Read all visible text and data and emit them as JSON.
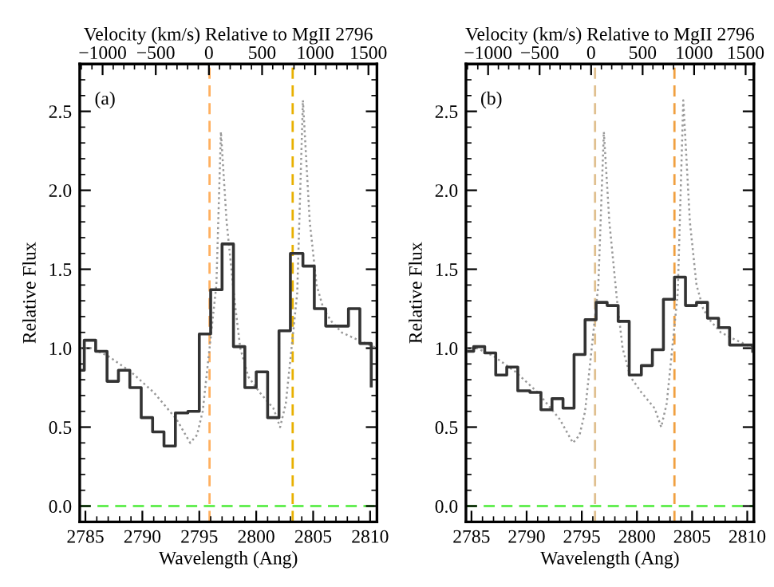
{
  "chart_data": [
    {
      "type": "step",
      "xlabel": "Wavelength (Ang)",
      "ylabel": "Relative Flux",
      "x2label": "Velocity (km/s) Relative to MgII 2796",
      "annotations": [
        "(a)"
      ],
      "xlim": [
        2784.5,
        2810.6
      ],
      "xticks": [
        2785,
        2790,
        2795,
        2800,
        2805,
        2810
      ],
      "ylim": [
        -0.1,
        2.8
      ],
      "yticks": [
        {
          "value": 0,
          "label": "0.0"
        },
        {
          "value": 0.5,
          "label": "0.5"
        },
        {
          "value": 1,
          "label": "1.0"
        },
        {
          "value": 1.5,
          "label": "1.5"
        },
        {
          "value": 2,
          "label": "2.0"
        },
        {
          "value": 2.5,
          "label": "2.5"
        }
      ],
      "x2lim": [
        -1215,
        1580
      ],
      "x2ticks": [
        -1000,
        -500,
        0,
        500,
        1000,
        1500
      ],
      "grid": false,
      "legend": false,
      "ref_lines": [
        {
          "axis": "x",
          "value": 2795.9,
          "color": "#ffb060",
          "line_style": "dashed"
        },
        {
          "axis": "x",
          "value": 2803.2,
          "color": "#e8b000",
          "line_style": "dashed"
        },
        {
          "axis": "y",
          "value": 0,
          "color": "#66ee55",
          "line_style": "dashed"
        }
      ],
      "series": [
        {
          "type": "line",
          "color": "#999999",
          "line_style": "dotted",
          "x": [
            2784.5,
            2785.5,
            2787,
            2789,
            2791,
            2793,
            2793.8,
            2794.2,
            2794.8,
            2795.3,
            2795.9,
            2796.5,
            2796.9,
            2797.4,
            2798.1,
            2798.6,
            2799.3,
            2800.3,
            2801.5,
            2802.1,
            2802.6,
            2803.1,
            2803.6,
            2804.1,
            2804.7,
            2805.3,
            2805.9,
            2806.6,
            2807.5,
            2809,
            2810.6
          ],
          "values": [
            1.0,
            1.0,
            0.95,
            0.85,
            0.72,
            0.55,
            0.45,
            0.4,
            0.45,
            0.6,
            1.0,
            1.4,
            2.37,
            1.8,
            1.3,
            1.0,
            0.82,
            0.72,
            0.62,
            0.5,
            0.65,
            1.0,
            1.35,
            2.57,
            1.8,
            1.4,
            1.25,
            1.17,
            1.1,
            1.05,
            1.0
          ]
        },
        {
          "type": "step",
          "color": "#333333",
          "x": [
            2784.5,
            2784.9,
            2785.9,
            2786.9,
            2787.9,
            2788.9,
            2789.9,
            2790.9,
            2791.9,
            2792.9,
            2794.0,
            2795.0,
            2796.0,
            2797.0,
            2798.0,
            2799.0,
            2800.0,
            2801.0,
            2802.0,
            2803.0,
            2804.1,
            2805.1,
            2806.1,
            2807.1,
            2808.1,
            2809.1,
            2810.1
          ],
          "values": [
            0.86,
            1.05,
            0.98,
            0.79,
            0.86,
            0.75,
            0.56,
            0.47,
            0.38,
            0.59,
            0.6,
            1.09,
            1.37,
            1.66,
            1.01,
            0.75,
            0.85,
            0.56,
            1.11,
            1.6,
            1.52,
            1.25,
            1.14,
            1.14,
            1.25,
            1.03,
            0.76
          ]
        }
      ]
    },
    {
      "type": "step",
      "xlabel": "Wavelength (Ang)",
      "ylabel": "Relative Flux",
      "x2label": "Velocity (km/s) Relative to MgII 2796",
      "annotations": [
        "(b)"
      ],
      "xlim": [
        2784.5,
        2810.6
      ],
      "xticks": [
        2785,
        2790,
        2795,
        2800,
        2805,
        2810
      ],
      "ylim": [
        -0.1,
        2.8
      ],
      "yticks": [
        {
          "value": 0,
          "label": "0.0"
        },
        {
          "value": 0.5,
          "label": "0.5"
        },
        {
          "value": 1,
          "label": "1.0"
        },
        {
          "value": 1.5,
          "label": "1.5"
        },
        {
          "value": 2,
          "label": "2.0"
        },
        {
          "value": 2.5,
          "label": "2.5"
        }
      ],
      "x2lim": [
        -1215,
        1580
      ],
      "x2ticks": [
        -1000,
        -500,
        0,
        500,
        1000,
        1500
      ],
      "grid": false,
      "legend": false,
      "ref_lines": [
        {
          "axis": "x",
          "value": 2796.2,
          "color": "#e0c090",
          "line_style": "dashed"
        },
        {
          "axis": "x",
          "value": 2803.4,
          "color": "#f0a040",
          "line_style": "dashed"
        },
        {
          "axis": "y",
          "value": 0,
          "color": "#66ee55",
          "line_style": "dashed"
        }
      ],
      "series": [
        {
          "type": "line",
          "color": "#999999",
          "line_style": "dotted",
          "x": [
            2784.5,
            2785.5,
            2787,
            2789,
            2791,
            2793,
            2793.8,
            2794.2,
            2794.8,
            2795.3,
            2795.9,
            2796.5,
            2797.0,
            2797.5,
            2798.2,
            2798.7,
            2799.4,
            2800.4,
            2801.6,
            2802.2,
            2802.7,
            2803.2,
            2803.7,
            2804.2,
            2804.8,
            2805.4,
            2806.0,
            2806.7,
            2807.6,
            2809,
            2810.6
          ],
          "values": [
            1.0,
            1.0,
            0.95,
            0.85,
            0.72,
            0.55,
            0.45,
            0.4,
            0.45,
            0.6,
            1.0,
            1.4,
            2.37,
            1.8,
            1.3,
            1.0,
            0.82,
            0.72,
            0.62,
            0.5,
            0.65,
            1.0,
            1.35,
            2.57,
            1.8,
            1.4,
            1.25,
            1.17,
            1.1,
            1.05,
            1.0
          ]
        },
        {
          "type": "step",
          "color": "#333333",
          "x": [
            2784.5,
            2785.2,
            2786.2,
            2787.2,
            2788.2,
            2789.2,
            2790.3,
            2791.3,
            2792.3,
            2793.3,
            2794.3,
            2795.3,
            2796.3,
            2797.3,
            2798.3,
            2799.3,
            2800.4,
            2801.4,
            2802.4,
            2803.4,
            2804.4,
            2805.4,
            2806.4,
            2807.4,
            2808.4,
            2809.5,
            2810.5
          ],
          "values": [
            0.98,
            1.01,
            0.97,
            0.83,
            0.88,
            0.73,
            0.72,
            0.61,
            0.68,
            0.62,
            0.96,
            1.18,
            1.29,
            1.27,
            1.17,
            0.83,
            0.89,
            0.99,
            1.31,
            1.45,
            1.27,
            1.29,
            1.19,
            1.13,
            1.02,
            1.02,
            0.98
          ]
        }
      ]
    }
  ]
}
